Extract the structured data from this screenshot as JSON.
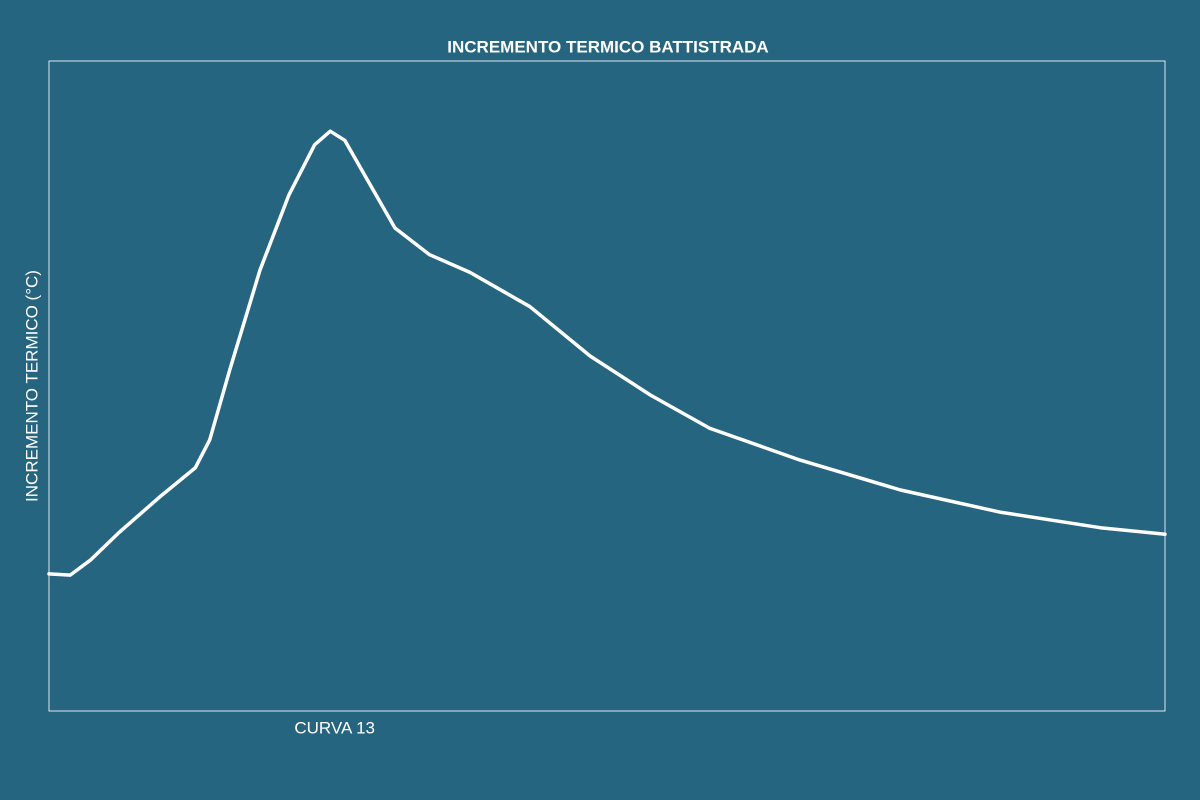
{
  "chart_data": {
    "type": "line",
    "title": "INCREMENTO TERMICO BATTISTRADA",
    "y_label": "INCREMENTO TERMICO (°C)",
    "background": "#266580",
    "xlim": [
      0,
      100
    ],
    "ylim": [
      0,
      100
    ],
    "xticks": [
      {
        "value": 25.6,
        "label": "CURVA 13"
      }
    ],
    "x": [
      0,
      1.9,
      3.7,
      6.3,
      9.9,
      13.1,
      14.4,
      16.2,
      18.9,
      21.5,
      23.8,
      25.2,
      26.5,
      28.8,
      31.0,
      34.1,
      37.7,
      43.1,
      48.5,
      53.9,
      59.2,
      67.3,
      76.3,
      85.2,
      94.2,
      100
    ],
    "series": [
      {
        "color": "#ffffff",
        "values": [
          21.1,
          20.9,
          23.2,
          27.5,
          32.9,
          37.4,
          41.7,
          52.5,
          67.8,
          79.4,
          87.1,
          89.2,
          87.8,
          80.9,
          74.3,
          70.2,
          67.5,
          62.2,
          54.6,
          48.6,
          43.5,
          38.6,
          34.0,
          30.6,
          28.2,
          27.2
        ]
      }
    ]
  }
}
